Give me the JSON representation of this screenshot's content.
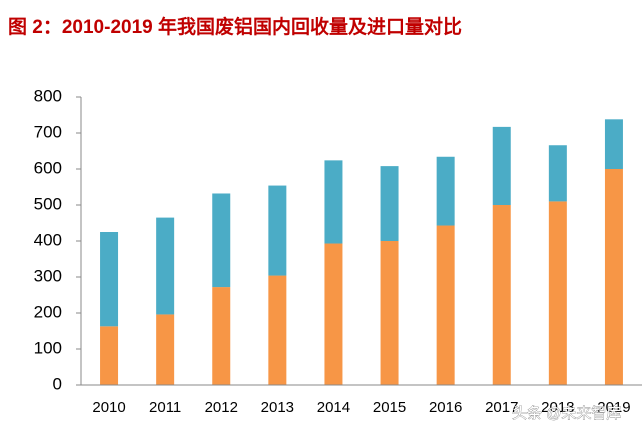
{
  "chart_data": {
    "type": "stacked_bar",
    "title": "图 2：2010-2019 年我国废铝国内回收量及进口量对比",
    "categories": [
      "2010",
      "2011",
      "2012",
      "2013",
      "2014",
      "2015",
      "2016",
      "2017",
      "2018",
      "2019"
    ],
    "series": [
      {
        "color": "#f79646",
        "values": [
          163,
          196,
          272,
          304,
          393,
          400,
          443,
          500,
          510,
          600
        ]
      },
      {
        "color": "#4bacc6",
        "values": [
          262,
          269,
          260,
          250,
          231,
          208,
          191,
          217,
          156,
          138
        ]
      }
    ],
    "ylim": [
      0,
      800
    ],
    "yticks": [
      0,
      100,
      200,
      300,
      400,
      500,
      600,
      700,
      800
    ],
    "annotation": "头条 @未来智库"
  }
}
